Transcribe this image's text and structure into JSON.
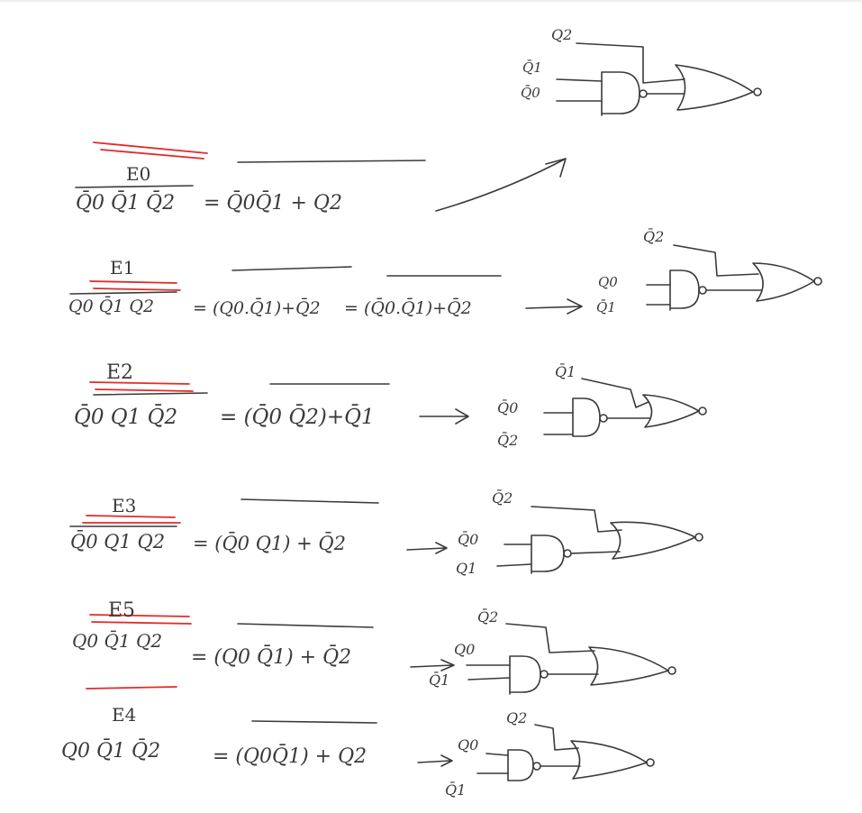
{
  "header_gate": {
    "inputs": [
      "Q2",
      "Q̄1",
      "Q̄0"
    ]
  },
  "rows": [
    {
      "id": "e0",
      "label": "E0",
      "lhs": "Q̄0 Q̄1 Q̄2",
      "eq1": "= Q̄0Q̄1 + Q2",
      "eq2": "",
      "gate_inputs": []
    },
    {
      "id": "e1",
      "label": "E1",
      "lhs": "Q0 Q̄1 Q2",
      "eq1": "= (Q0.Q̄1)+Q̄2",
      "eq2": "= (Q̄0.Q̄1)+Q̄2",
      "gate_inputs": [
        "Q̄2",
        "Q0",
        "Q̄1"
      ]
    },
    {
      "id": "e2",
      "label": "E2",
      "lhs": "Q̄0 Q1 Q̄2",
      "eq1": "= (Q̄0 Q̄2)+Q̄1",
      "eq2": "",
      "gate_inputs": [
        "Q̄1",
        "Q̄0",
        "Q̄2"
      ]
    },
    {
      "id": "e3",
      "label": "E3",
      "lhs": "Q̄0 Q1 Q2",
      "eq1": "= (Q̄0 Q1) + Q̄2",
      "eq2": "",
      "gate_inputs": [
        "Q̄2",
        "Q̄0",
        "Q1"
      ]
    },
    {
      "id": "e5",
      "label": "E5",
      "lhs": "Q0 Q̄1 Q2",
      "eq1": "= (Q0 Q̄1) + Q̄2",
      "eq2": "",
      "gate_inputs": [
        "Q̄2",
        "Q0",
        "Q̄1"
      ]
    },
    {
      "id": "e4",
      "label": "E4",
      "lhs": "Q0 Q̄1 Q̄2",
      "eq1": "= (Q0Q̄1) + Q2",
      "eq2": "",
      "gate_inputs": [
        "Q2",
        "Q0",
        "Q̄1"
      ]
    }
  ]
}
